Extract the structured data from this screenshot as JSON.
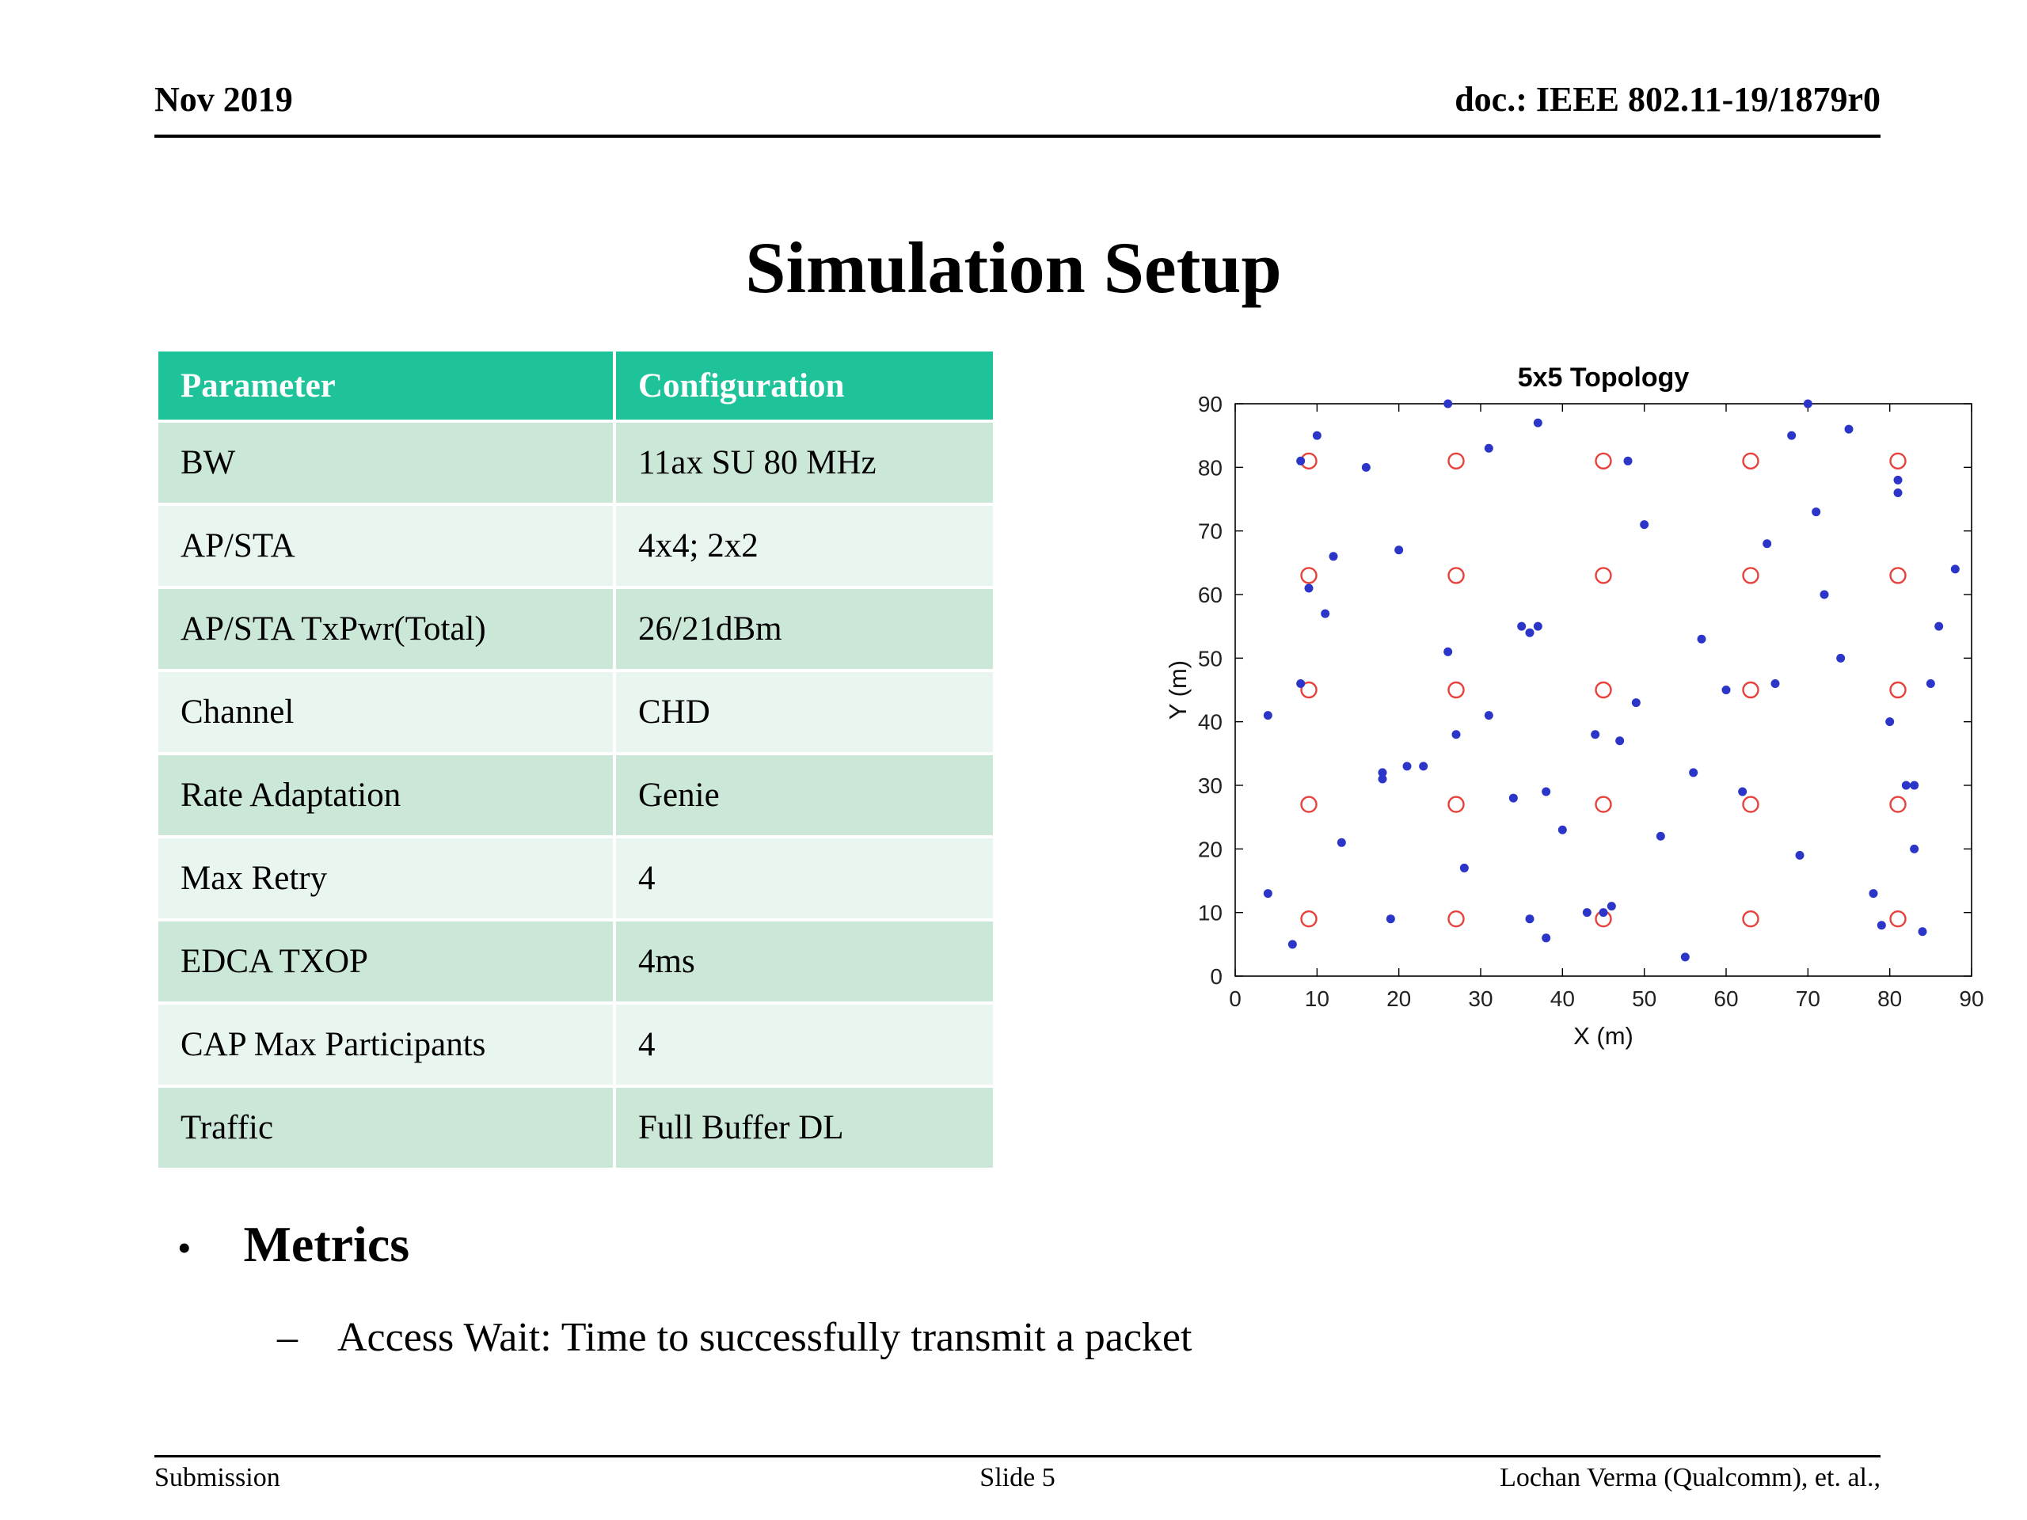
{
  "header": {
    "date": "Nov 2019",
    "doc_id": "doc.: IEEE 802.11-19/1879r0"
  },
  "title": "Simulation Setup",
  "table": {
    "headers": [
      "Parameter",
      "Configuration"
    ],
    "rows": [
      [
        "BW",
        "11ax SU 80 MHz"
      ],
      [
        "AP/STA",
        "4x4; 2x2"
      ],
      [
        "AP/STA TxPwr(Total)",
        "26/21dBm"
      ],
      [
        "Channel",
        "CHD"
      ],
      [
        "Rate Adaptation",
        "Genie"
      ],
      [
        "Max Retry",
        "4"
      ],
      [
        "EDCA TXOP",
        "4ms"
      ],
      [
        "CAP Max Participants",
        "4"
      ],
      [
        "Traffic",
        "Full Buffer DL"
      ]
    ]
  },
  "chart_data": {
    "type": "scatter",
    "title": "5x5 Topology",
    "xlabel": "X (m)",
    "ylabel": "Y (m)",
    "xlim": [
      0,
      90
    ],
    "ylim": [
      0,
      90
    ],
    "xticks": [
      0,
      10,
      20,
      30,
      40,
      50,
      60,
      70,
      80,
      90
    ],
    "yticks": [
      0,
      10,
      20,
      30,
      40,
      50,
      60,
      70,
      80,
      90
    ],
    "grid": false,
    "legend": "none",
    "series": [
      {
        "name": "AP (5x5 grid)",
        "marker": "open-circle",
        "color": "#e8413c",
        "points": [
          [
            9,
            9
          ],
          [
            27,
            9
          ],
          [
            45,
            9
          ],
          [
            63,
            9
          ],
          [
            81,
            9
          ],
          [
            9,
            27
          ],
          [
            27,
            27
          ],
          [
            45,
            27
          ],
          [
            63,
            27
          ],
          [
            81,
            27
          ],
          [
            9,
            45
          ],
          [
            27,
            45
          ],
          [
            45,
            45
          ],
          [
            63,
            45
          ],
          [
            81,
            45
          ],
          [
            9,
            63
          ],
          [
            27,
            63
          ],
          [
            45,
            63
          ],
          [
            63,
            63
          ],
          [
            81,
            63
          ],
          [
            9,
            81
          ],
          [
            27,
            81
          ],
          [
            45,
            81
          ],
          [
            63,
            81
          ],
          [
            81,
            81
          ]
        ]
      },
      {
        "name": "STA",
        "marker": "dot",
        "color": "#2b35c8",
        "points": [
          [
            4,
            41
          ],
          [
            4,
            13
          ],
          [
            7,
            5
          ],
          [
            8,
            46
          ],
          [
            8,
            81
          ],
          [
            9,
            61
          ],
          [
            10,
            85
          ],
          [
            11,
            57
          ],
          [
            12,
            66
          ],
          [
            13,
            21
          ],
          [
            16,
            80
          ],
          [
            18,
            31
          ],
          [
            18,
            32
          ],
          [
            19,
            9
          ],
          [
            20,
            67
          ],
          [
            21,
            33
          ],
          [
            23,
            33
          ],
          [
            26,
            90
          ],
          [
            26,
            51
          ],
          [
            27,
            38
          ],
          [
            28,
            17
          ],
          [
            31,
            41
          ],
          [
            31,
            83
          ],
          [
            34,
            28
          ],
          [
            35,
            55
          ],
          [
            36,
            54
          ],
          [
            37,
            55
          ],
          [
            36,
            9
          ],
          [
            37,
            87
          ],
          [
            38,
            6
          ],
          [
            38,
            29
          ],
          [
            40,
            23
          ],
          [
            43,
            10
          ],
          [
            44,
            38
          ],
          [
            45,
            10
          ],
          [
            46,
            11
          ],
          [
            47,
            37
          ],
          [
            48,
            81
          ],
          [
            49,
            43
          ],
          [
            50,
            71
          ],
          [
            52,
            22
          ],
          [
            55,
            3
          ],
          [
            56,
            32
          ],
          [
            57,
            53
          ],
          [
            60,
            45
          ],
          [
            62,
            29
          ],
          [
            65,
            68
          ],
          [
            66,
            46
          ],
          [
            68,
            85
          ],
          [
            69,
            19
          ],
          [
            70,
            90
          ],
          [
            71,
            73
          ],
          [
            72,
            60
          ],
          [
            74,
            50
          ],
          [
            75,
            86
          ],
          [
            78,
            13
          ],
          [
            79,
            8
          ],
          [
            80,
            40
          ],
          [
            81,
            78
          ],
          [
            81,
            76
          ],
          [
            82,
            30
          ],
          [
            83,
            30
          ],
          [
            83,
            20
          ],
          [
            84,
            7
          ],
          [
            85,
            46
          ],
          [
            86,
            55
          ],
          [
            88,
            64
          ]
        ]
      }
    ]
  },
  "bullets": {
    "bullet_glyph": "•",
    "metrics_title": "Metrics",
    "dash_glyph": "–",
    "sub_bullet": "Access Wait: Time to successfully transmit a packet"
  },
  "footer": {
    "left": "Submission",
    "center": "Slide 5",
    "right": "Lochan Verma (Qualcomm), et. al.,"
  },
  "colors": {
    "table_header_bg": "#1fc39a",
    "row_odd": "#cbe7d8",
    "row_even": "#e9f5ef",
    "ap_color": "#e8413c",
    "sta_color": "#2b35c8"
  }
}
